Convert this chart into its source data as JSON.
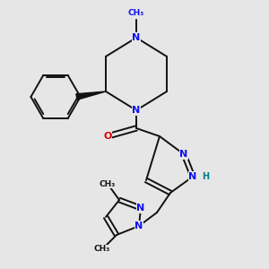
{
  "bg_color": "#e6e6e6",
  "bond_color": "#111111",
  "N_color": "#1010ee",
  "O_color": "#dd0000",
  "NH_color": "#008080",
  "lw": 1.4,
  "dbo": 0.011,
  "figsize": [
    3.0,
    3.0
  ],
  "dpi": 100,
  "xlim": [
    0.0,
    1.0
  ],
  "ylim": [
    0.0,
    1.0
  ]
}
